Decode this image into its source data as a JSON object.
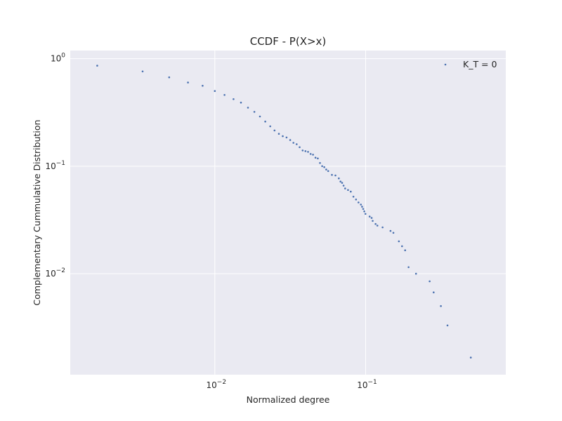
{
  "chart_data": {
    "type": "scatter",
    "title": "CCDF - P(X>x)",
    "xlabel": "Normalized degree",
    "ylabel": "Complementary Cummulative Distribution",
    "xscale": "log",
    "yscale": "log",
    "xlim": [
      0.0011,
      0.85
    ],
    "ylim": [
      0.00115,
      1.19
    ],
    "grid": true,
    "legend_position": "top-right",
    "marker_color": "#4c72b0",
    "background_color": "#eaeaf2",
    "grid_color": "#ffffff",
    "xticks": [
      {
        "value": 0.01,
        "base": "10",
        "exp": "−2"
      },
      {
        "value": 0.1,
        "base": "10",
        "exp": "−1"
      }
    ],
    "yticks": [
      {
        "value": 1,
        "base": "10",
        "exp": "0"
      },
      {
        "value": 0.1,
        "base": "10",
        "exp": "−1"
      },
      {
        "value": 0.01,
        "base": "10",
        "exp": "−2"
      }
    ],
    "series": [
      {
        "name": "K_T = 0",
        "x": [
          0.00166,
          0.00332,
          0.00498,
          0.00664,
          0.0083,
          0.01,
          0.0116,
          0.0133,
          0.0149,
          0.0166,
          0.0183,
          0.0199,
          0.0216,
          0.0233,
          0.0249,
          0.0266,
          0.0282,
          0.0299,
          0.0316,
          0.0332,
          0.0349,
          0.0365,
          0.0382,
          0.0399,
          0.0415,
          0.0432,
          0.0448,
          0.0465,
          0.0482,
          0.0498,
          0.0515,
          0.0532,
          0.0548,
          0.0565,
          0.0598,
          0.0631,
          0.0664,
          0.0681,
          0.0698,
          0.0714,
          0.0731,
          0.0764,
          0.0797,
          0.083,
          0.0864,
          0.0897,
          0.093,
          0.0947,
          0.0963,
          0.098,
          0.0997,
          0.1063,
          0.1096,
          0.1113,
          0.1163,
          0.1196,
          0.1296,
          0.1462,
          0.1528,
          0.1661,
          0.1744,
          0.1827,
          0.1927,
          0.2159,
          0.2658,
          0.2824,
          0.3156,
          0.3488,
          0.4983
        ],
        "y": [
          0.86,
          0.76,
          0.67,
          0.6,
          0.56,
          0.5,
          0.46,
          0.42,
          0.39,
          0.35,
          0.32,
          0.29,
          0.26,
          0.235,
          0.215,
          0.2,
          0.19,
          0.185,
          0.175,
          0.165,
          0.16,
          0.15,
          0.14,
          0.138,
          0.136,
          0.13,
          0.128,
          0.12,
          0.118,
          0.107,
          0.1,
          0.098,
          0.093,
          0.09,
          0.083,
          0.082,
          0.077,
          0.072,
          0.07,
          0.066,
          0.062,
          0.06,
          0.058,
          0.052,
          0.049,
          0.046,
          0.044,
          0.042,
          0.04,
          0.038,
          0.036,
          0.034,
          0.033,
          0.031,
          0.029,
          0.028,
          0.027,
          0.025,
          0.024,
          0.02,
          0.018,
          0.0165,
          0.0115,
          0.01,
          0.0085,
          0.0067,
          0.005,
          0.0033,
          0.00166
        ]
      }
    ]
  }
}
